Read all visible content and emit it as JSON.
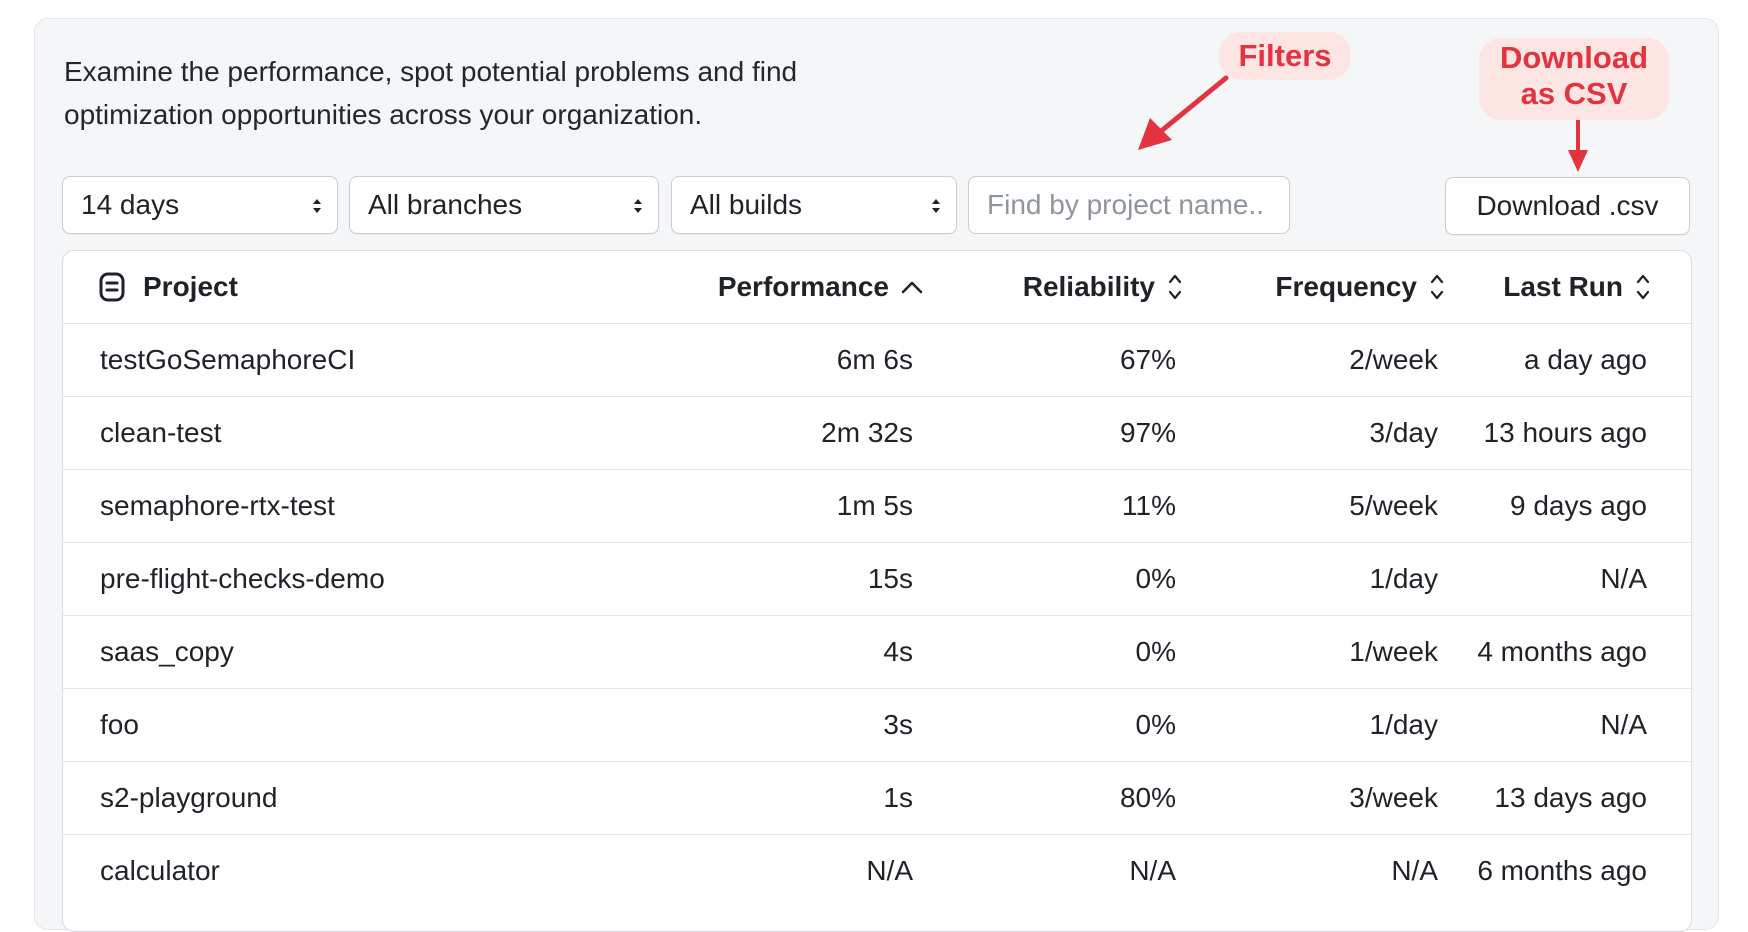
{
  "intro": {
    "line1": "Examine the performance, spot potential problems and find",
    "line2": "optimization opportunities across your organization."
  },
  "filters": {
    "period": "14 days",
    "branches": "All branches",
    "builds": "All builds",
    "search_placeholder": "Find by project name..",
    "download_label": "Download .csv"
  },
  "annotations": {
    "filters": "Filters",
    "download_line1": "Download",
    "download_line2": "as CSV",
    "color": "#e2343f"
  },
  "table": {
    "headers": {
      "project": "Project",
      "performance": "Performance",
      "reliability": "Reliability",
      "frequency": "Frequency",
      "last_run": "Last Run"
    },
    "sorted_by": "performance",
    "rows": [
      {
        "project": "testGoSemaphoreCI",
        "performance": "6m 6s",
        "reliability": "67%",
        "frequency": "2/week",
        "last_run": "a day ago"
      },
      {
        "project": "clean-test",
        "performance": "2m 32s",
        "reliability": "97%",
        "frequency": "3/day",
        "last_run": "13 hours ago"
      },
      {
        "project": "semaphore-rtx-test",
        "performance": "1m 5s",
        "reliability": "11%",
        "frequency": "5/week",
        "last_run": "9 days ago"
      },
      {
        "project": "pre-flight-checks-demo",
        "performance": "15s",
        "reliability": "0%",
        "frequency": "1/day",
        "last_run": "N/A"
      },
      {
        "project": "saas_copy",
        "performance": "4s",
        "reliability": "0%",
        "frequency": "1/week",
        "last_run": "4 months ago"
      },
      {
        "project": "foo",
        "performance": "3s",
        "reliability": "0%",
        "frequency": "1/day",
        "last_run": "N/A"
      },
      {
        "project": "s2-playground",
        "performance": "1s",
        "reliability": "80%",
        "frequency": "3/week",
        "last_run": "13 days ago"
      },
      {
        "project": "calculator",
        "performance": "N/A",
        "reliability": "N/A",
        "frequency": "N/A",
        "last_run": "6 months ago"
      }
    ]
  }
}
